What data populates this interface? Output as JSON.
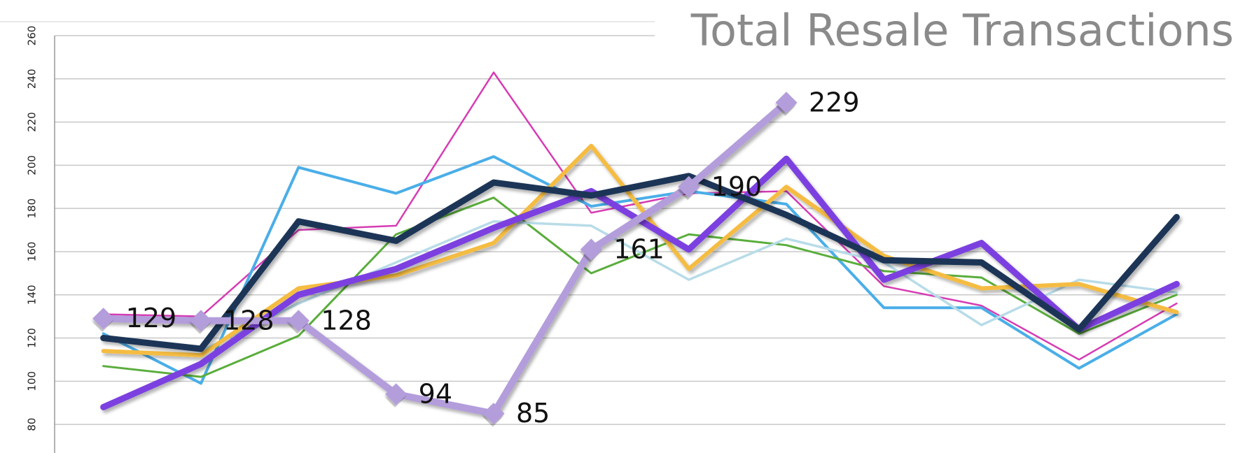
{
  "chart_data": {
    "type": "line",
    "title": "Total Resale Transactions",
    "categories": [
      null,
      null,
      null,
      null,
      null,
      null,
      null,
      null,
      null,
      null,
      null,
      null
    ],
    "ylim": [
      70,
      260
    ],
    "yticks": [
      80,
      100,
      120,
      140,
      160,
      180,
      200,
      220,
      240,
      260
    ],
    "grid": true,
    "series": [
      {
        "color": "#d63cb4",
        "values": [
          131,
          130,
          170,
          172,
          243,
          178,
          187,
          188,
          144,
          135,
          110,
          136
        ]
      },
      {
        "color": "#4aaee8",
        "values": [
          122,
          99,
          199,
          187,
          204,
          181,
          188,
          182,
          134,
          134,
          106,
          131
        ]
      },
      {
        "color": "#5aad3c",
        "values": [
          107,
          102,
          121,
          168,
          185,
          150,
          168,
          163,
          151,
          148,
          122,
          140
        ]
      },
      {
        "color": "#b8dce8",
        "values": [
          121,
          114,
          136,
          155,
          174,
          172,
          147,
          166,
          155,
          126,
          147,
          141
        ]
      },
      {
        "color": "#f5bc42",
        "values": [
          114,
          112,
          143,
          149,
          164,
          209,
          152,
          190,
          158,
          143,
          145,
          132
        ]
      },
      {
        "color": "#7b3fe0",
        "values": [
          88,
          108,
          140,
          152,
          171,
          188,
          161,
          203,
          147,
          164,
          124,
          145
        ]
      },
      {
        "color": "#1d3557",
        "values": [
          120,
          115,
          174,
          165,
          192,
          186,
          195,
          177,
          156,
          155,
          124,
          176
        ]
      },
      {
        "color": "#b39ddb",
        "values": [
          129,
          128,
          128,
          94,
          85,
          161,
          190,
          229,
          null,
          null,
          null,
          null
        ]
      }
    ]
  }
}
